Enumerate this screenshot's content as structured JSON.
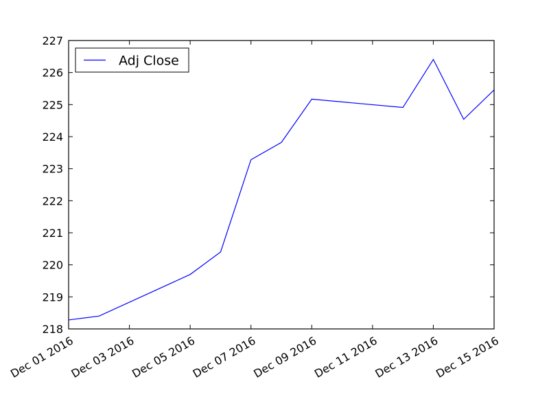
{
  "chart_data": {
    "type": "line",
    "title": "",
    "xlabel": "",
    "ylabel": "",
    "x": [
      "2016-12-01",
      "2016-12-02",
      "2016-12-05",
      "2016-12-06",
      "2016-12-07",
      "2016-12-08",
      "2016-12-09",
      "2016-12-12",
      "2016-12-13",
      "2016-12-14",
      "2016-12-15"
    ],
    "series": [
      {
        "name": "Adj Close",
        "color": "#0000ff",
        "values": [
          218.28,
          218.4,
          219.7,
          220.4,
          223.28,
          223.82,
          225.17,
          224.91,
          226.41,
          224.54,
          225.46
        ]
      }
    ],
    "ylim": [
      218,
      227
    ],
    "xlim": [
      "2016-12-01",
      "2016-12-15"
    ],
    "yticks": [
      218,
      219,
      220,
      221,
      222,
      223,
      224,
      225,
      226,
      227
    ],
    "xticks": [
      "2016-12-01",
      "2016-12-03",
      "2016-12-05",
      "2016-12-07",
      "2016-12-09",
      "2016-12-11",
      "2016-12-13",
      "2016-12-15"
    ],
    "xtick_labels": [
      "Dec 01 2016",
      "Dec 03 2016",
      "Dec 05 2016",
      "Dec 07 2016",
      "Dec 09 2016",
      "Dec 11 2016",
      "Dec 13 2016",
      "Dec 15 2016"
    ],
    "grid": false,
    "legend": {
      "position": "top-left",
      "entries": [
        "Adj Close"
      ]
    }
  }
}
